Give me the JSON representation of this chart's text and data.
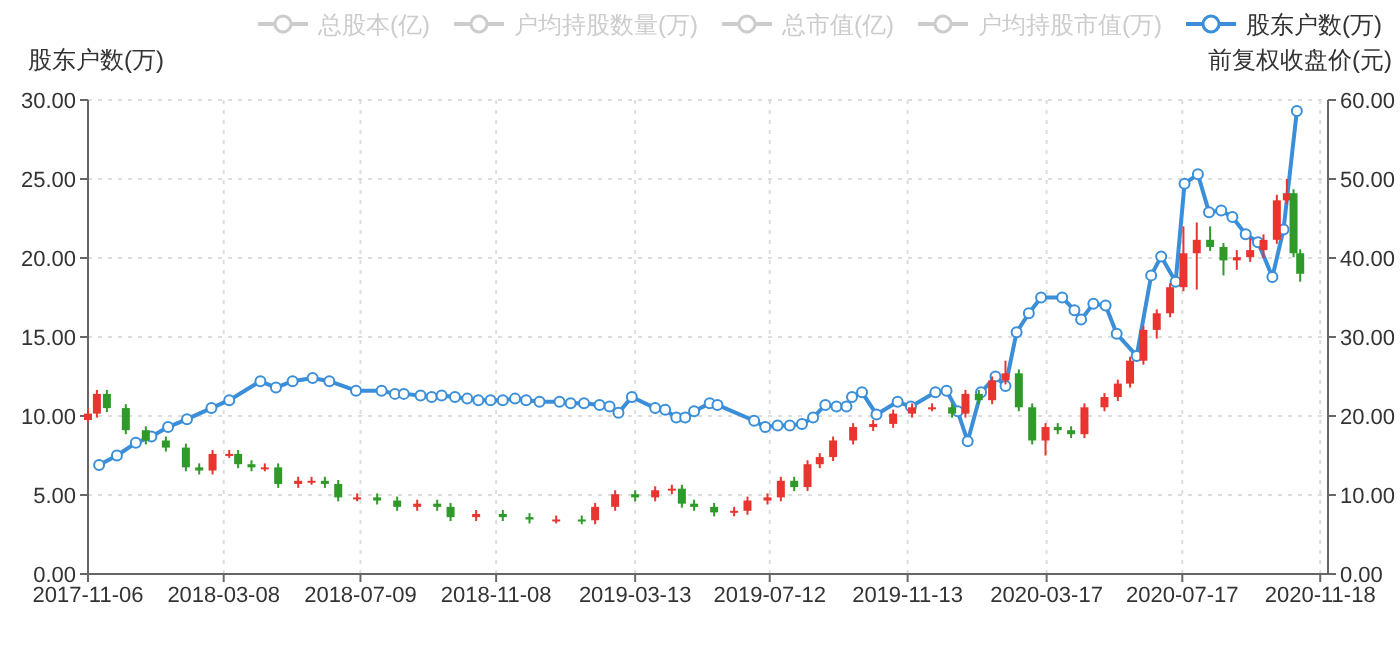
{
  "chart_data": {
    "type": "line",
    "ylabel": "股东户数(万)",
    "y2label": "前复权收盘价(元)",
    "xlim": [
      "2017-11-06",
      "2020-11-25"
    ],
    "xticks": [
      "2017-11-06",
      "2018-03-08",
      "2018-07-09",
      "2018-11-08",
      "2019-03-13",
      "2019-07-12",
      "2019-11-13",
      "2020-03-17",
      "2020-07-17",
      "2020-11-18"
    ],
    "ylim": [
      0,
      30
    ],
    "yticks": [
      {
        "value": 0,
        "label": "0.00"
      },
      {
        "value": 5,
        "label": "5.00"
      },
      {
        "value": 10,
        "label": "10.00"
      },
      {
        "value": 15,
        "label": "15.00"
      },
      {
        "value": 20,
        "label": "20.00"
      },
      {
        "value": 25,
        "label": "25.00"
      },
      {
        "value": 30,
        "label": "30.00"
      }
    ],
    "y2lim": [
      0,
      60
    ],
    "y2ticks": [
      {
        "value": 0,
        "label": "0.00"
      },
      {
        "value": 10,
        "label": "10.00"
      },
      {
        "value": 20,
        "label": "20.00"
      },
      {
        "value": 30,
        "label": "30.00"
      },
      {
        "value": 40,
        "label": "40.00"
      },
      {
        "value": 50,
        "label": "50.00"
      },
      {
        "value": 60,
        "label": "60.00"
      }
    ],
    "grid": true,
    "legend": "top",
    "marker": "circle",
    "series": [
      {
        "name": "总股本(亿)",
        "color": "#cccccc"
      },
      {
        "name": "户均持股数量(万)",
        "color": "#cccccc"
      },
      {
        "name": "总市值(亿)",
        "color": "#cccccc"
      },
      {
        "name": "户均持股市值(万)",
        "color": "#cccccc"
      },
      {
        "name": "股东户数(万)",
        "color": "#3b8fd9",
        "x": [
          "2017-11-16",
          "2017-12-02",
          "2017-12-19",
          "2018-01-02",
          "2018-01-17",
          "2018-02-03",
          "2018-02-25",
          "2018-03-13",
          "2018-04-10",
          "2018-04-24",
          "2018-05-09",
          "2018-05-27",
          "2018-06-11",
          "2018-07-05",
          "2018-07-28",
          "2018-08-09",
          "2018-08-17",
          "2018-09-01",
          "2018-09-11",
          "2018-09-20",
          "2018-10-02",
          "2018-10-13",
          "2018-10-23",
          "2018-11-03",
          "2018-11-14",
          "2018-11-25",
          "2018-12-05",
          "2018-12-17",
          "2019-01-04",
          "2019-01-14",
          "2019-01-26",
          "2019-02-09",
          "2019-02-18",
          "2019-02-26",
          "2019-03-10",
          "2019-03-31",
          "2019-04-09",
          "2019-04-19",
          "2019-04-27",
          "2019-05-05",
          "2019-05-19",
          "2019-05-26",
          "2019-06-28",
          "2019-07-08",
          "2019-07-19",
          "2019-07-30",
          "2019-08-10",
          "2019-08-20",
          "2019-08-31",
          "2019-09-10",
          "2019-09-19",
          "2019-09-24",
          "2019-10-03",
          "2019-10-16",
          "2019-11-04",
          "2019-11-16",
          "2019-12-08",
          "2019-12-18",
          "2019-12-28",
          "2020-01-06",
          "2020-01-18",
          "2020-01-31",
          "2020-02-09",
          "2020-02-19",
          "2020-03-01",
          "2020-03-12",
          "2020-03-31",
          "2020-04-11",
          "2020-04-17",
          "2020-04-28",
          "2020-05-09",
          "2020-05-19",
          "2020-06-06",
          "2020-06-19",
          "2020-06-28",
          "2020-07-11",
          "2020-07-19",
          "2020-07-31",
          "2020-08-10",
          "2020-08-21",
          "2020-08-31",
          "2020-09-12",
          "2020-09-23",
          "2020-10-06",
          "2020-10-16",
          "2020-10-28"
        ],
        "values": [
          6.9,
          7.5,
          8.3,
          8.7,
          9.3,
          9.8,
          10.5,
          11.0,
          12.2,
          11.8,
          12.2,
          12.4,
          12.2,
          11.6,
          11.6,
          11.4,
          11.4,
          11.3,
          11.2,
          11.3,
          11.2,
          11.1,
          11.0,
          11.0,
          11.0,
          11.1,
          11.0,
          10.9,
          10.9,
          10.8,
          10.8,
          10.7,
          10.6,
          10.2,
          11.2,
          10.5,
          10.4,
          9.9,
          9.9,
          10.3,
          10.8,
          10.7,
          9.7,
          9.3,
          9.4,
          9.4,
          9.5,
          9.9,
          10.7,
          10.6,
          10.6,
          11.2,
          11.5,
          10.1,
          10.9,
          10.6,
          11.5,
          11.6,
          10.3,
          8.4,
          11.5,
          12.5,
          11.9,
          15.3,
          16.5,
          17.5,
          17.5,
          16.7,
          16.1,
          17.1,
          17.0,
          15.2,
          13.8,
          18.9,
          20.1,
          18.5,
          24.7,
          25.3,
          22.9,
          23.0,
          22.6,
          21.5,
          21.0,
          18.8,
          21.8,
          29.3
        ]
      },
      {
        "type": "candlestick",
        "axis": "y2",
        "x": [
          "2017-11-06",
          "2017-11-14",
          "2017-11-23",
          "2017-12-10",
          "2017-12-28",
          "2018-01-15",
          "2018-02-02",
          "2018-02-14",
          "2018-02-26",
          "2018-03-13",
          "2018-03-21",
          "2018-04-02",
          "2018-04-14",
          "2018-04-26",
          "2018-05-14",
          "2018-05-26",
          "2018-06-07",
          "2018-06-19",
          "2018-07-06",
          "2018-07-24",
          "2018-08-11",
          "2018-08-29",
          "2018-09-16",
          "2018-09-28",
          "2018-10-21",
          "2018-11-14",
          "2018-12-08",
          "2019-01-01",
          "2019-01-24",
          "2019-02-05",
          "2019-02-23",
          "2019-03-13",
          "2019-03-31",
          "2019-04-15",
          "2019-04-24",
          "2019-05-05",
          "2019-05-23",
          "2019-06-10",
          "2019-06-22",
          "2019-07-10",
          "2019-07-22",
          "2019-08-03",
          "2019-08-15",
          "2019-08-26",
          "2019-09-07",
          "2019-09-25",
          "2019-10-13",
          "2019-10-31",
          "2019-11-17",
          "2019-12-05",
          "2019-12-23",
          "2020-01-04",
          "2020-01-16",
          "2020-01-28",
          "2020-02-09",
          "2020-02-21",
          "2020-03-04",
          "2020-03-16",
          "2020-03-27",
          "2020-04-08",
          "2020-04-20",
          "2020-05-08",
          "2020-05-20",
          "2020-05-31",
          "2020-06-12",
          "2020-06-24",
          "2020-07-06",
          "2020-07-18",
          "2020-07-30",
          "2020-08-11",
          "2020-08-23",
          "2020-09-04",
          "2020-09-16",
          "2020-09-28",
          "2020-10-10",
          "2020-10-19",
          "2020-10-25",
          "2020-10-31"
        ],
        "ohlc": [
          [
            19.5,
            21.0,
            19.2,
            20.3
          ],
          [
            20.3,
            23.3,
            19.8,
            22.8
          ],
          [
            22.8,
            23.3,
            20.5,
            21.0
          ],
          [
            21.0,
            21.5,
            17.7,
            18.2
          ],
          [
            18.2,
            18.7,
            16.4,
            16.9
          ],
          [
            16.9,
            17.4,
            15.5,
            16.0
          ],
          [
            16.0,
            16.5,
            13.0,
            13.5
          ],
          [
            13.5,
            14.0,
            12.6,
            13.1
          ],
          [
            13.1,
            15.7,
            12.6,
            15.2
          ],
          [
            15.2,
            15.7,
            14.7,
            15.2
          ],
          [
            15.2,
            15.7,
            13.4,
            13.9
          ],
          [
            13.9,
            14.4,
            13.0,
            13.5
          ],
          [
            13.5,
            14.0,
            13.0,
            13.5
          ],
          [
            13.5,
            14.0,
            10.9,
            11.4
          ],
          [
            11.4,
            12.3,
            10.9,
            11.8
          ],
          [
            11.8,
            12.3,
            11.3,
            11.8
          ],
          [
            11.8,
            12.3,
            10.9,
            11.4
          ],
          [
            11.4,
            11.9,
            9.2,
            9.7
          ],
          [
            9.7,
            10.2,
            9.2,
            9.7
          ],
          [
            9.7,
            10.2,
            8.8,
            9.3
          ],
          [
            9.3,
            9.8,
            8.0,
            8.5
          ],
          [
            8.5,
            9.4,
            8.0,
            8.9
          ],
          [
            8.9,
            9.4,
            8.0,
            8.5
          ],
          [
            8.5,
            9.0,
            6.7,
            7.2
          ],
          [
            7.2,
            8.1,
            6.7,
            7.6
          ],
          [
            7.6,
            8.1,
            6.7,
            7.2
          ],
          [
            7.2,
            7.7,
            6.4,
            6.9
          ],
          [
            6.9,
            7.4,
            6.4,
            6.9
          ],
          [
            6.9,
            7.4,
            6.3,
            6.8
          ],
          [
            6.8,
            9.0,
            6.3,
            8.5
          ],
          [
            8.5,
            10.6,
            8.0,
            10.1
          ],
          [
            10.1,
            10.6,
            9.2,
            9.7
          ],
          [
            9.7,
            11.1,
            9.2,
            10.6
          ],
          [
            10.6,
            11.3,
            10.1,
            10.8
          ],
          [
            10.8,
            11.3,
            8.4,
            8.9
          ],
          [
            8.9,
            9.4,
            8.0,
            8.5
          ],
          [
            8.5,
            9.0,
            7.3,
            7.8
          ],
          [
            7.8,
            8.5,
            7.3,
            8.0
          ],
          [
            8.0,
            9.8,
            7.5,
            9.3
          ],
          [
            9.3,
            10.2,
            8.8,
            9.7
          ],
          [
            9.7,
            12.3,
            9.2,
            11.8
          ],
          [
            11.8,
            12.3,
            10.5,
            11.0
          ],
          [
            11.0,
            14.4,
            10.5,
            13.9
          ],
          [
            13.9,
            15.3,
            13.4,
            14.8
          ],
          [
            14.8,
            17.4,
            14.3,
            16.9
          ],
          [
            16.9,
            19.1,
            16.4,
            18.6
          ],
          [
            18.6,
            19.5,
            18.1,
            19.0
          ],
          [
            19.0,
            20.8,
            18.5,
            20.3
          ],
          [
            20.3,
            21.6,
            19.8,
            21.1
          ],
          [
            21.1,
            21.6,
            20.6,
            21.1
          ],
          [
            21.1,
            21.6,
            19.8,
            20.3
          ],
          [
            20.3,
            23.3,
            19.8,
            22.8
          ],
          [
            22.8,
            23.3,
            21.5,
            22.0
          ],
          [
            22.0,
            25.0,
            21.5,
            24.5
          ],
          [
            24.5,
            27.0,
            24.0,
            25.4
          ],
          [
            25.4,
            25.9,
            20.6,
            21.1
          ],
          [
            21.1,
            21.6,
            16.4,
            16.9
          ],
          [
            16.9,
            19.1,
            15.0,
            18.6
          ],
          [
            18.6,
            19.1,
            17.7,
            18.2
          ],
          [
            18.2,
            18.7,
            17.2,
            17.7
          ],
          [
            17.7,
            21.6,
            17.2,
            21.1
          ],
          [
            21.1,
            22.9,
            20.6,
            22.4
          ],
          [
            22.4,
            24.6,
            21.9,
            24.1
          ],
          [
            24.1,
            27.5,
            23.6,
            27.0
          ],
          [
            27.0,
            31.4,
            26.5,
            30.9
          ],
          [
            30.9,
            33.5,
            29.8,
            33.0
          ],
          [
            33.0,
            36.8,
            32.5,
            36.3
          ],
          [
            36.3,
            44.0,
            35.8,
            40.6
          ],
          [
            40.6,
            44.5,
            36.0,
            42.3
          ],
          [
            42.3,
            44.0,
            40.9,
            41.4
          ],
          [
            41.4,
            41.9,
            37.8,
            39.7
          ],
          [
            39.7,
            41.0,
            38.5,
            40.1
          ],
          [
            40.1,
            42.5,
            39.5,
            41.0
          ],
          [
            41.0,
            43.0,
            40.0,
            42.3
          ],
          [
            42.3,
            48.0,
            41.8,
            47.3
          ],
          [
            47.3,
            50.0,
            46.8,
            48.2
          ],
          [
            48.2,
            48.7,
            40.1,
            40.6
          ],
          [
            40.6,
            41.1,
            37.0,
            38.0
          ]
        ]
      }
    ]
  }
}
